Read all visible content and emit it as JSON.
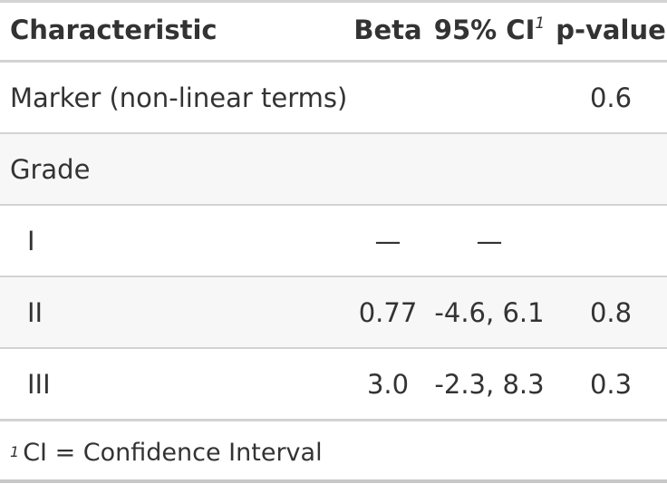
{
  "table": {
    "headers": {
      "characteristic": "Characteristic",
      "beta": "Beta",
      "ci": "95% CI",
      "ci_marker": "1",
      "pvalue": "p-value"
    },
    "rows": [
      {
        "characteristic": "Marker (non-linear terms)",
        "beta": "",
        "ci": "",
        "pvalue": "0.6"
      },
      {
        "characteristic": "Grade",
        "beta": "",
        "ci": "",
        "pvalue": ""
      },
      {
        "characteristic": "I",
        "beta": "—",
        "ci": "—",
        "pvalue": ""
      },
      {
        "characteristic": "II",
        "beta": "0.77",
        "ci": "-4.6, 6.1",
        "pvalue": "0.8"
      },
      {
        "characteristic": "III",
        "beta": "3.0",
        "ci": "-2.3, 8.3",
        "pvalue": "0.3"
      }
    ]
  },
  "footnote": {
    "marker": "1",
    "text": "CI = Confidence Interval"
  },
  "colors": {
    "text": "#333333",
    "border": "#d3d3d3",
    "row_shade": "#f7f7f7"
  }
}
